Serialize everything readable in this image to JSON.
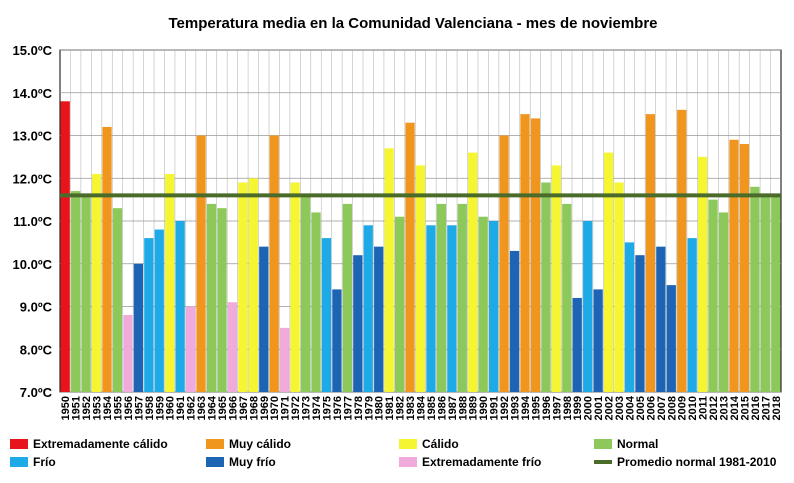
{
  "chart_data": {
    "type": "bar",
    "title": "Temperatura media en la Comunidad Valenciana - mes de noviembre",
    "xlabel": "",
    "ylabel": "",
    "ylim": [
      7.0,
      15.0
    ],
    "y_ticks": [
      "7.0ºC",
      "8.0ºC",
      "9.0ºC",
      "10.0ºC",
      "11.0ºC",
      "12.0ºC",
      "13.0ºC",
      "14.0ºC",
      "15.0ºC"
    ],
    "grid": true,
    "reference_line": {
      "name": "Promedio normal 1981-2010",
      "value": 11.6,
      "color": "#4a6b2a"
    },
    "categories": [
      "1950",
      "1951",
      "1952",
      "1953",
      "1954",
      "1955",
      "1956",
      "1957",
      "1958",
      "1959",
      "1960",
      "1961",
      "1962",
      "1963",
      "1964",
      "1965",
      "1966",
      "1967",
      "1968",
      "1969",
      "1970",
      "1971",
      "1972",
      "1973",
      "1974",
      "1975",
      "1976",
      "1977",
      "1978",
      "1979",
      "1980",
      "1981",
      "1982",
      "1983",
      "1984",
      "1985",
      "1986",
      "1987",
      "1988",
      "1989",
      "1990",
      "1991",
      "1992",
      "1993",
      "1994",
      "1995",
      "1996",
      "1997",
      "1998",
      "1999",
      "2000",
      "2001",
      "2002",
      "2003",
      "2004",
      "2005",
      "2006",
      "2007",
      "2008",
      "2009",
      "2010",
      "2011",
      "2012",
      "2013",
      "2014",
      "2015",
      "2016",
      "2017",
      "2018"
    ],
    "values": [
      13.8,
      11.7,
      11.6,
      12.1,
      13.2,
      11.3,
      8.8,
      10.0,
      10.6,
      10.8,
      12.1,
      11.0,
      9.0,
      13.0,
      11.4,
      11.3,
      9.1,
      11.9,
      12.0,
      10.4,
      13.0,
      8.5,
      11.9,
      11.6,
      11.2,
      10.6,
      9.4,
      11.4,
      10.2,
      10.9,
      10.4,
      12.7,
      11.1,
      13.3,
      12.3,
      10.9,
      11.4,
      10.9,
      11.4,
      12.6,
      11.1,
      11.0,
      13.0,
      10.3,
      13.5,
      13.4,
      11.9,
      12.3,
      11.4,
      9.2,
      11.0,
      9.4,
      12.6,
      11.9,
      10.5,
      10.2,
      13.5,
      10.4,
      9.5,
      13.6,
      10.6,
      12.5,
      11.5,
      11.2,
      12.9,
      12.8,
      11.8,
      11.6,
      11.6
    ],
    "classes": [
      "ec",
      "n",
      "n",
      "c",
      "mc",
      "n",
      "ef",
      "mf",
      "f",
      "f",
      "c",
      "f",
      "ef",
      "mc",
      "n",
      "n",
      "ef",
      "c",
      "c",
      "mf",
      "mc",
      "ef",
      "c",
      "n",
      "n",
      "f",
      "mf",
      "n",
      "mf",
      "f",
      "mf",
      "c",
      "n",
      "mc",
      "c",
      "f",
      "n",
      "f",
      "n",
      "c",
      "n",
      "f",
      "mc",
      "mf",
      "mc",
      "mc",
      "n",
      "c",
      "n",
      "mf",
      "f",
      "mf",
      "c",
      "c",
      "f",
      "mf",
      "mc",
      "mf",
      "mf",
      "mc",
      "f",
      "c",
      "n",
      "n",
      "mc",
      "mc",
      "n",
      "n",
      "n"
    ],
    "legend": [
      {
        "key": "ec",
        "label": "Extremadamente cálido",
        "color": "#e8141c"
      },
      {
        "key": "mc",
        "label": "Muy cálido",
        "color": "#f0961e"
      },
      {
        "key": "c",
        "label": "Cálido",
        "color": "#f5f532"
      },
      {
        "key": "n",
        "label": "Normal",
        "color": "#8cc85a"
      },
      {
        "key": "f",
        "label": "Frío",
        "color": "#1eaae6"
      },
      {
        "key": "mf",
        "label": "Muy frío",
        "color": "#1e64b4"
      },
      {
        "key": "ef",
        "label": "Extremadamente frío",
        "color": "#f0aadc"
      },
      {
        "key": "line",
        "label": "Promedio normal 1981-2010",
        "color": "#4a6b2a"
      }
    ]
  }
}
